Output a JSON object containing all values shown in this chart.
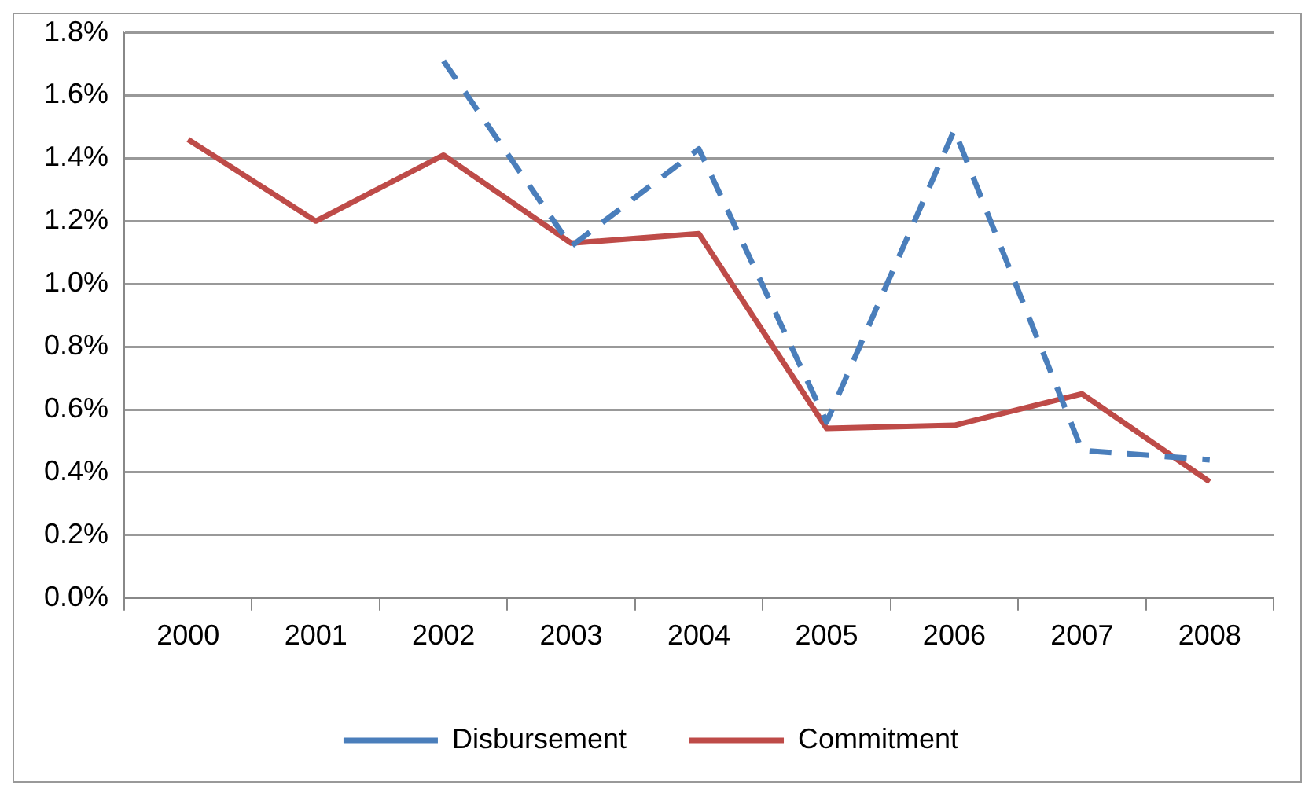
{
  "chart_data": {
    "type": "line",
    "categories": [
      "2000",
      "2001",
      "2002",
      "2003",
      "2004",
      "2005",
      "2006",
      "2007",
      "2008"
    ],
    "series": [
      {
        "name": "Disbursement",
        "color": "#4a7ebb",
        "line_style": "dashed",
        "values": [
          null,
          null,
          1.71,
          1.12,
          1.43,
          0.56,
          1.49,
          0.47,
          0.44
        ]
      },
      {
        "name": "Commitment",
        "color": "#be4b48",
        "line_style": "solid",
        "values": [
          1.46,
          1.2,
          1.41,
          1.13,
          1.16,
          0.54,
          0.55,
          0.65,
          0.37
        ]
      }
    ],
    "ylim": [
      0,
      1.8
    ],
    "yticks": [
      {
        "value": 0,
        "label": "0.0%"
      },
      {
        "value": 0.2,
        "label": "0.2%"
      },
      {
        "value": 0.4,
        "label": "0.4%"
      },
      {
        "value": 0.6,
        "label": "0.6%"
      },
      {
        "value": 0.8,
        "label": "0.8%"
      },
      {
        "value": 1,
        "label": "1.0%"
      },
      {
        "value": 1.2,
        "label": "1.2%"
      },
      {
        "value": 1.4,
        "label": "1.4%"
      },
      {
        "value": 1.6,
        "label": "1.6%"
      },
      {
        "value": 1.8,
        "label": "1.8%"
      }
    ],
    "grid": "y",
    "legend": "bottom",
    "marker": "none"
  }
}
